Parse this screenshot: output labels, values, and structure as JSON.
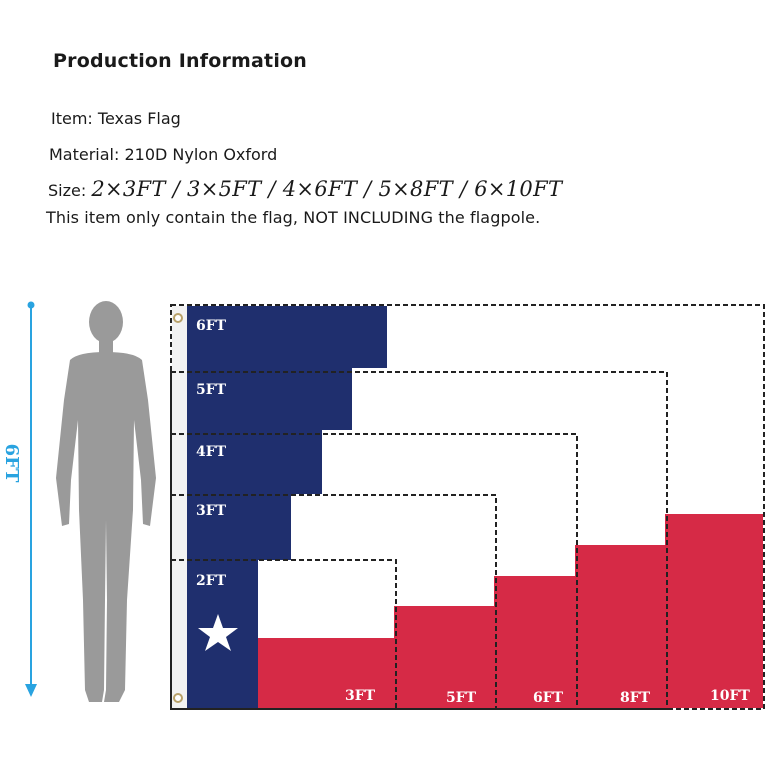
{
  "info": {
    "heading": "Production Information",
    "item": "Item: Texas Flag",
    "material": "Material: 210D Nylon Oxford",
    "size_label": "Size:",
    "size_values": "2×3FT / 3×5FT / 4×6FT / 5×8FT / 6×10FT",
    "note": "This item only contain the flag, NOT INCLUDING the flagpole."
  },
  "figure": {
    "height_label": "6FT",
    "flag_heights": [
      "6FT",
      "5FT",
      "4FT",
      "3FT",
      "2FT"
    ],
    "flag_widths": [
      "3FT",
      "5FT",
      "6FT",
      "8FT",
      "10FT"
    ],
    "colors": {
      "blue": "#1f2f6e",
      "red": "#d62a46",
      "white": "#ffffff",
      "silhouette": "#9a9a9a",
      "arrow": "#29a3e0"
    }
  }
}
